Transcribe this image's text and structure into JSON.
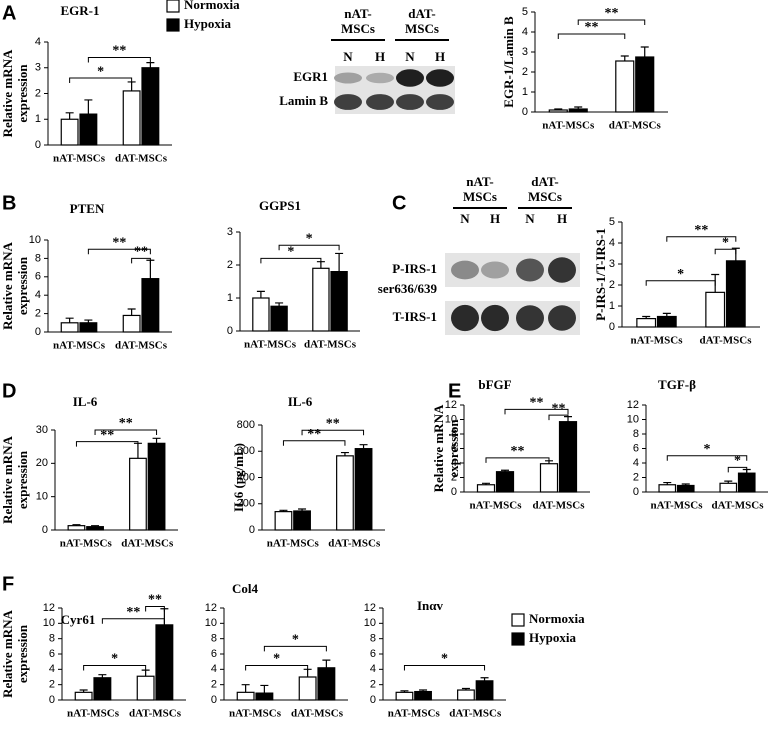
{
  "panel_labels": [
    "A",
    "B",
    "C",
    "D",
    "E",
    "F"
  ],
  "blots": [
    {
      "groups": [
        [
          "nAT-",
          "MSCs"
        ],
        [
          "dAT-",
          "MSCs"
        ]
      ],
      "lanes": [
        "N",
        "H",
        "N",
        "H"
      ],
      "rows": [
        [
          "EGR1"
        ],
        [
          "Lamin B"
        ]
      ]
    },
    {
      "groups": [
        [
          "nAT-",
          "MSCs"
        ],
        [
          "dAT-",
          "MSCs"
        ]
      ],
      "lanes": [
        "N",
        "H",
        "N",
        "H"
      ],
      "rows": [
        [
          "P-IRS-1",
          "ser636/639"
        ],
        [
          "T-IRS-1"
        ]
      ]
    }
  ],
  "chart_data": [
    {
      "type": "bar",
      "title": "EGR-1",
      "ylabel": [
        "Relative mRNA",
        "expression"
      ],
      "categories": [
        "nAT-MSCs",
        "dAT-MSCs"
      ],
      "series": [
        {
          "name": "Normoxia",
          "color": "#ffffff",
          "values": [
            1.0,
            2.1
          ],
          "errors": [
            0.25,
            0.35
          ]
        },
        {
          "name": "Hypoxia",
          "color": "#000000",
          "values": [
            1.2,
            3.0
          ],
          "errors": [
            0.55,
            0.2
          ]
        }
      ],
      "ylim": [
        0,
        4
      ],
      "yticks": [
        0,
        1,
        2,
        3,
        4
      ],
      "annotations": [
        {
          "label": "*",
          "y": 2.6,
          "from": [
            0,
            0
          ],
          "to": [
            1,
            0
          ]
        },
        {
          "label": "**",
          "y": 3.4,
          "from": [
            0,
            1
          ],
          "to": [
            1,
            1
          ]
        }
      ]
    },
    {
      "type": "bar",
      "ylabel": [
        "EGR-1/Lamin B"
      ],
      "categories": [
        "nAT-MSCs",
        "dAT-MSCs"
      ],
      "series": [
        {
          "color": "#ffffff",
          "values": [
            0.1,
            2.55
          ],
          "errors": [
            0.05,
            0.25
          ]
        },
        {
          "color": "#000000",
          "values": [
            0.15,
            2.75
          ],
          "errors": [
            0.1,
            0.5
          ]
        }
      ],
      "ylim": [
        0,
        5
      ],
      "yticks": [
        0,
        1,
        2,
        3,
        4,
        5
      ],
      "annotations": [
        {
          "label": "**",
          "y": 3.9,
          "from": [
            0,
            0
          ],
          "to": [
            1,
            0
          ]
        },
        {
          "label": "**",
          "y": 4.6,
          "from": [
            0,
            1
          ],
          "to": [
            1,
            1
          ]
        }
      ]
    },
    {
      "type": "bar",
      "title": "PTEN",
      "ylabel": [
        "Relative mRNA",
        "expression"
      ],
      "categories": [
        "nAT-MSCs",
        "dAT-MSCs"
      ],
      "series": [
        {
          "color": "#ffffff",
          "values": [
            1.0,
            1.8
          ],
          "errors": [
            0.5,
            0.7
          ]
        },
        {
          "color": "#000000",
          "values": [
            1.0,
            5.8
          ],
          "errors": [
            0.3,
            2.0
          ]
        }
      ],
      "ylim": [
        0,
        10
      ],
      "yticks": [
        0,
        2,
        4,
        6,
        8,
        10
      ],
      "annotations": [
        {
          "label": "**",
          "y": 9.0,
          "from": [
            0,
            1
          ],
          "to": [
            1,
            1
          ]
        },
        {
          "label": "**",
          "y": 8.0,
          "from": [
            1,
            0
          ],
          "to": [
            1,
            1
          ]
        }
      ]
    },
    {
      "type": "bar",
      "title": "GGPS1",
      "categories": [
        "nAT-MSCs",
        "dAT-MSCs"
      ],
      "series": [
        {
          "color": "#ffffff",
          "values": [
            1.0,
            1.9
          ],
          "errors": [
            0.2,
            0.2
          ]
        },
        {
          "color": "#000000",
          "values": [
            0.75,
            1.8
          ],
          "errors": [
            0.1,
            0.55
          ]
        }
      ],
      "ylim": [
        0,
        3
      ],
      "yticks": [
        0,
        1,
        2,
        3
      ],
      "annotations": [
        {
          "label": "*",
          "y": 2.2,
          "from": [
            0,
            0
          ],
          "to": [
            1,
            0
          ]
        },
        {
          "label": "*",
          "y": 2.6,
          "from": [
            0,
            1
          ],
          "to": [
            1,
            1
          ]
        }
      ]
    },
    {
      "type": "bar",
      "ylabel": [
        "P-IRS-1/T-IRS-1"
      ],
      "categories": [
        "nAT-MSCs",
        "dAT-MSCs"
      ],
      "series": [
        {
          "color": "#ffffff",
          "values": [
            0.4,
            1.65
          ],
          "errors": [
            0.1,
            0.85
          ]
        },
        {
          "color": "#000000",
          "values": [
            0.5,
            3.15
          ],
          "errors": [
            0.15,
            0.6
          ]
        }
      ],
      "ylim": [
        0,
        5
      ],
      "yticks": [
        0,
        1,
        2,
        3,
        4,
        5
      ],
      "annotations": [
        {
          "label": "*",
          "y": 2.2,
          "from": [
            0,
            0
          ],
          "to": [
            1,
            0
          ]
        },
        {
          "label": "*",
          "y": 3.7,
          "from": [
            1,
            0
          ],
          "to": [
            1,
            1
          ]
        },
        {
          "label": "**",
          "y": 4.3,
          "from": [
            0,
            1
          ],
          "to": [
            1,
            1
          ]
        }
      ]
    },
    {
      "type": "bar",
      "title": "IL-6",
      "ylabel": [
        "Relative mRNA",
        "expression"
      ],
      "categories": [
        "nAT-MSCs",
        "dAT-MSCs"
      ],
      "series": [
        {
          "color": "#ffffff",
          "values": [
            1.3,
            21.5
          ],
          "errors": [
            0.3,
            4.5
          ]
        },
        {
          "color": "#000000",
          "values": [
            1.0,
            26
          ],
          "errors": [
            0.3,
            1.5
          ]
        }
      ],
      "ylim": [
        0,
        30
      ],
      "yticks": [
        0,
        10,
        20,
        30
      ],
      "annotations": [
        {
          "label": "**",
          "y": 26.5,
          "from": [
            0,
            0
          ],
          "to": [
            1,
            0
          ]
        },
        {
          "label": "**",
          "y": 30,
          "from": [
            0,
            1
          ],
          "to": [
            1,
            1
          ]
        }
      ]
    },
    {
      "type": "bar",
      "title": "IL-6",
      "ylabel": [
        "IL6 (pg/mL)"
      ],
      "categories": [
        "nAT-MSCs",
        "dAT-MSCs"
      ],
      "series": [
        {
          "color": "#ffffff",
          "values": [
            140,
            565
          ],
          "errors": [
            10,
            25
          ]
        },
        {
          "color": "#000000",
          "values": [
            145,
            620
          ],
          "errors": [
            15,
            30
          ]
        }
      ],
      "ylim": [
        0,
        800
      ],
      "yticks": [
        0,
        200,
        400,
        600,
        800
      ],
      "annotations": [
        {
          "label": "**",
          "y": 680,
          "from": [
            0,
            0
          ],
          "to": [
            1,
            0
          ]
        },
        {
          "label": "**",
          "y": 760,
          "from": [
            0,
            1
          ],
          "to": [
            1,
            1
          ]
        }
      ]
    },
    {
      "type": "bar",
      "title": "bFGF",
      "ylabel": [
        "Relative mRNA",
        "expression"
      ],
      "categories": [
        "nAT-MSCs",
        "dAT-MSCs"
      ],
      "series": [
        {
          "color": "#ffffff",
          "values": [
            1.0,
            3.9
          ],
          "errors": [
            0.2,
            0.4
          ]
        },
        {
          "color": "#000000",
          "values": [
            2.8,
            9.7
          ],
          "errors": [
            0.2,
            0.7
          ]
        }
      ],
      "ylim": [
        0,
        12
      ],
      "yticks": [
        0,
        2,
        4,
        6,
        8,
        10,
        12
      ],
      "annotations": [
        {
          "label": "**",
          "y": 4.7,
          "from": [
            0,
            0
          ],
          "to": [
            1,
            0
          ]
        },
        {
          "label": "**",
          "y": 10.6,
          "from": [
            1,
            0
          ],
          "to": [
            1,
            1
          ]
        },
        {
          "label": "**",
          "y": 11.4,
          "from": [
            0,
            1
          ],
          "to": [
            1,
            1
          ]
        }
      ]
    },
    {
      "type": "bar",
      "title": "TGF-β",
      "categories": [
        "nAT-MSCs",
        "dAT-MSCs"
      ],
      "series": [
        {
          "color": "#ffffff",
          "values": [
            1.0,
            1.2
          ],
          "errors": [
            0.3,
            0.3
          ]
        },
        {
          "color": "#000000",
          "values": [
            0.9,
            2.6
          ],
          "errors": [
            0.2,
            0.5
          ]
        }
      ],
      "ylim": [
        0,
        12
      ],
      "yticks": [
        0,
        2,
        4,
        6,
        8,
        10,
        12
      ],
      "annotations": [
        {
          "label": "*",
          "y": 5,
          "from": [
            0,
            0
          ],
          "to": [
            1,
            1
          ]
        },
        {
          "label": "*",
          "y": 3.4,
          "from": [
            1,
            0
          ],
          "to": [
            1,
            1
          ]
        }
      ]
    },
    {
      "type": "bar",
      "title": "Cyr61",
      "ylabel": [
        "Relative mRNA",
        "expression"
      ],
      "categories": [
        "nAT-MSCs",
        "dAT-MSCs"
      ],
      "series": [
        {
          "color": "#ffffff",
          "values": [
            1.0,
            3.1
          ],
          "errors": [
            0.3,
            0.8
          ]
        },
        {
          "color": "#000000",
          "values": [
            2.9,
            9.8
          ],
          "errors": [
            0.4,
            2.1
          ]
        }
      ],
      "ylim": [
        0,
        12
      ],
      "yticks": [
        0,
        2,
        4,
        6,
        8,
        10,
        12
      ],
      "annotations": [
        {
          "label": "*",
          "y": 4.5,
          "from": [
            0,
            0
          ],
          "to": [
            1,
            0
          ]
        },
        {
          "label": "**",
          "y": 10.6,
          "from": [
            0,
            1
          ],
          "to": [
            1,
            1
          ]
        },
        {
          "label": "**",
          "y": 12.2,
          "from": [
            1,
            0
          ],
          "to": [
            1,
            1
          ]
        }
      ]
    },
    {
      "type": "bar",
      "title": "Col4",
      "categories": [
        "nAT-MSCs",
        "dAT-MSCs"
      ],
      "series": [
        {
          "color": "#ffffff",
          "values": [
            1.0,
            3.0
          ],
          "errors": [
            1.0,
            1.0
          ]
        },
        {
          "color": "#000000",
          "values": [
            0.9,
            4.2
          ],
          "errors": [
            1.0,
            1.0
          ]
        }
      ],
      "ylim": [
        0,
        12
      ],
      "yticks": [
        0,
        2,
        4,
        6,
        8,
        10,
        12
      ],
      "annotations": [
        {
          "label": "*",
          "y": 4.5,
          "from": [
            0,
            0
          ],
          "to": [
            1,
            0
          ]
        },
        {
          "label": "*",
          "y": 7,
          "from": [
            0,
            1
          ],
          "to": [
            1,
            1
          ]
        }
      ]
    },
    {
      "type": "bar",
      "title": "Inαv",
      "categories": [
        "nAT-MSCs",
        "dAT-MSCs"
      ],
      "series": [
        {
          "name": "Normoxia",
          "color": "#ffffff",
          "values": [
            1.0,
            1.3
          ],
          "errors": [
            0.2,
            0.2
          ]
        },
        {
          "name": "Hypoxia",
          "color": "#000000",
          "values": [
            1.1,
            2.5
          ],
          "errors": [
            0.2,
            0.4
          ]
        }
      ],
      "ylim": [
        0,
        12
      ],
      "yticks": [
        0,
        2,
        4,
        6,
        8,
        10,
        12
      ],
      "annotations": [
        {
          "label": "*",
          "y": 4.5,
          "from": [
            0,
            0
          ],
          "to": [
            1,
            1
          ]
        }
      ]
    }
  ]
}
